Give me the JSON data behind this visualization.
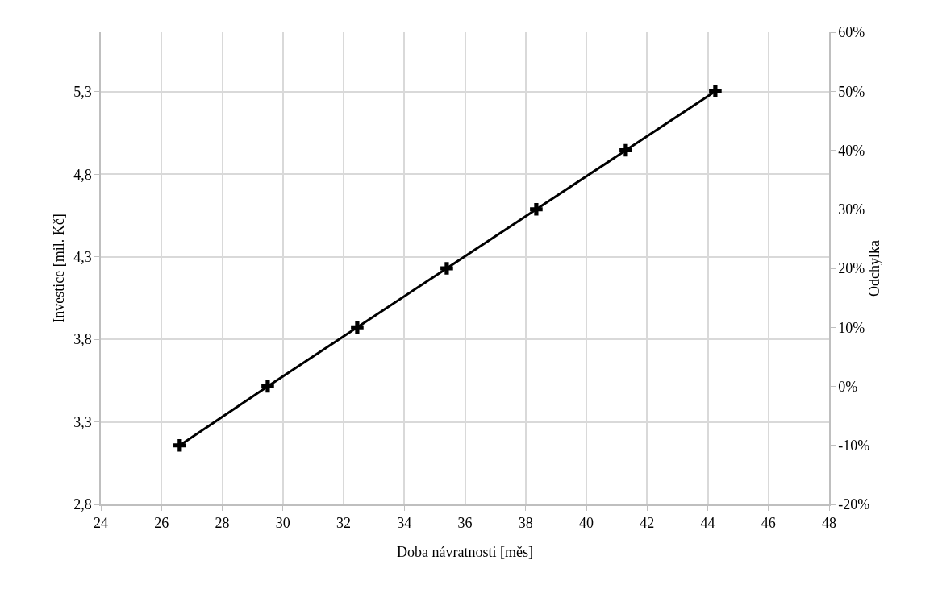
{
  "chart_data": {
    "type": "line",
    "xlabel": "Doba návratnosti [měs]",
    "ylabel": "Investice [mil. Kč]",
    "y2label": "Odchylka",
    "x": [
      26.6,
      29.5,
      32.45,
      35.4,
      38.35,
      41.3,
      44.25
    ],
    "series": [
      {
        "color": "#000000",
        "axis": "y2",
        "values": [
          -10,
          0,
          10,
          20,
          30,
          40,
          50
        ]
      }
    ],
    "xlim": [
      24,
      48
    ],
    "xticks": [
      24,
      26,
      28,
      30,
      32,
      34,
      36,
      38,
      40,
      42,
      44,
      46,
      48
    ],
    "ylim": [
      2.8,
      5.66
    ],
    "yticks": [
      {
        "value": 2.8,
        "label": "2,8"
      },
      {
        "value": 3.3,
        "label": "3,3"
      },
      {
        "value": 3.8,
        "label": "3,8"
      },
      {
        "value": 4.3,
        "label": "4,3"
      },
      {
        "value": 4.8,
        "label": "4,8"
      },
      {
        "value": 5.3,
        "label": "5,3"
      }
    ],
    "y2lim": [
      -20,
      60
    ],
    "y2ticks": [
      {
        "value": -20,
        "label": "-20%"
      },
      {
        "value": -10,
        "label": "-10%"
      },
      {
        "value": 0,
        "label": "0%"
      },
      {
        "value": 10,
        "label": "10%"
      },
      {
        "value": 20,
        "label": "20%"
      },
      {
        "value": 30,
        "label": "30%"
      },
      {
        "value": 40,
        "label": "40%"
      },
      {
        "value": 50,
        "label": "50%"
      },
      {
        "value": 60,
        "label": "60%"
      }
    ],
    "grid": true,
    "marker": "cross",
    "line_style": "solid"
  }
}
